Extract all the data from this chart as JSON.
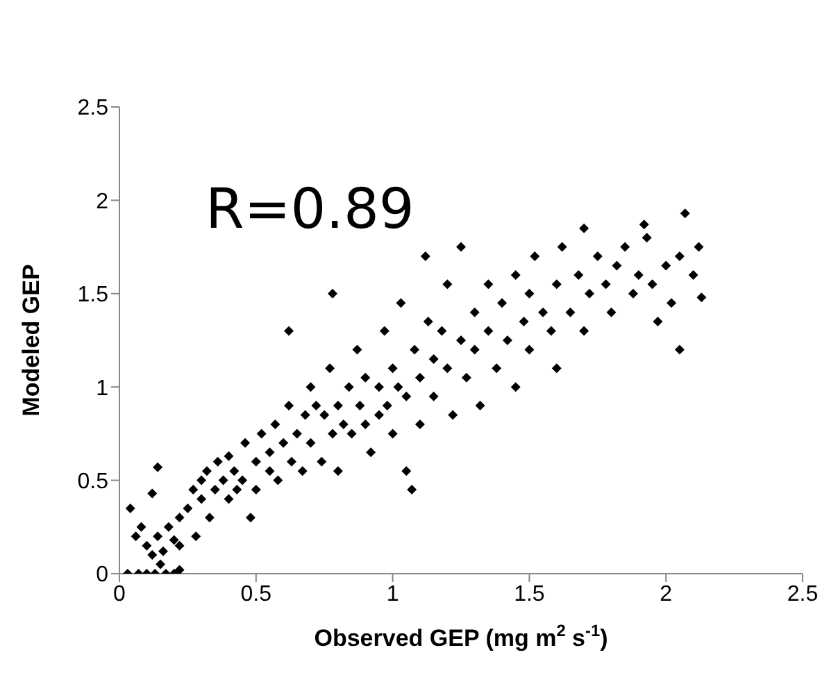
{
  "chart_data": {
    "type": "scatter",
    "xlabel": "Observed GEP (mg m$^{2}$ s$^{-1}$)",
    "ylabel": "Modeled GEP",
    "annotations": [
      "R=0.89"
    ],
    "marker": "diamond",
    "xlim": [
      0,
      2.5
    ],
    "xticks": [
      0,
      0.5,
      1,
      1.5,
      2,
      2.5
    ],
    "ylim": [
      0,
      2.5
    ],
    "yticks": [
      0,
      0.5,
      1,
      1.5,
      2,
      2.5
    ],
    "series": [
      {
        "color": "#000000",
        "x": [
          0.03,
          0.07,
          0.1,
          0.13,
          0.17,
          0.2,
          0.22,
          0.04,
          0.06,
          0.08,
          0.1,
          0.12,
          0.14,
          0.15,
          0.16,
          0.18,
          0.2,
          0.22,
          0.12,
          0.14,
          0.22,
          0.25,
          0.27,
          0.28,
          0.3,
          0.3,
          0.32,
          0.33,
          0.35,
          0.36,
          0.38,
          0.4,
          0.4,
          0.42,
          0.43,
          0.45,
          0.46,
          0.48,
          0.5,
          0.5,
          0.52,
          0.55,
          0.55,
          0.57,
          0.58,
          0.6,
          0.62,
          0.63,
          0.65,
          0.67,
          0.68,
          0.7,
          0.7,
          0.72,
          0.74,
          0.75,
          0.77,
          0.78,
          0.8,
          0.8,
          0.82,
          0.84,
          0.85,
          0.87,
          0.88,
          0.9,
          0.9,
          0.92,
          0.95,
          0.95,
          0.97,
          0.98,
          1.0,
          1.0,
          1.02,
          1.03,
          1.05,
          1.05,
          1.07,
          1.08,
          1.1,
          1.1,
          1.12,
          1.13,
          1.15,
          1.15,
          1.18,
          1.2,
          1.2,
          1.22,
          1.25,
          1.25,
          1.27,
          1.3,
          1.3,
          1.32,
          1.35,
          1.35,
          1.38,
          1.4,
          1.42,
          1.45,
          1.45,
          1.48,
          1.5,
          1.5,
          1.52,
          1.55,
          1.58,
          1.6,
          1.6,
          1.62,
          1.65,
          1.68,
          1.7,
          1.72,
          1.75,
          1.78,
          1.8,
          1.82,
          1.85,
          1.88,
          1.9,
          1.93,
          1.95,
          1.97,
          2.0,
          2.02,
          2.05,
          2.05,
          2.07,
          2.1,
          2.12,
          2.13,
          1.7,
          1.92,
          0.62,
          0.78
        ],
        "values": [
          0,
          0,
          0,
          0,
          0,
          0,
          0.02,
          0.35,
          0.2,
          0.25,
          0.15,
          0.1,
          0.2,
          0.05,
          0.12,
          0.25,
          0.18,
          0.15,
          0.43,
          0.57,
          0.3,
          0.35,
          0.45,
          0.2,
          0.5,
          0.4,
          0.55,
          0.3,
          0.45,
          0.6,
          0.5,
          0.4,
          0.63,
          0.55,
          0.45,
          0.5,
          0.7,
          0.3,
          0.6,
          0.45,
          0.75,
          0.55,
          0.65,
          0.8,
          0.5,
          0.7,
          0.9,
          0.6,
          0.75,
          0.55,
          0.85,
          0.7,
          1.0,
          0.9,
          0.6,
          0.85,
          1.1,
          0.75,
          0.9,
          0.55,
          0.8,
          1.0,
          0.75,
          1.2,
          0.9,
          0.8,
          1.05,
          0.65,
          1.0,
          0.85,
          1.3,
          0.9,
          1.1,
          0.75,
          1.0,
          1.45,
          0.95,
          0.55,
          0.45,
          1.2,
          1.05,
          0.8,
          1.7,
          1.35,
          1.15,
          0.95,
          1.3,
          1.1,
          1.55,
          0.85,
          1.25,
          1.75,
          1.05,
          1.4,
          1.2,
          0.9,
          1.3,
          1.55,
          1.1,
          1.45,
          1.25,
          1.6,
          1.0,
          1.35,
          1.5,
          1.2,
          1.7,
          1.4,
          1.3,
          1.55,
          1.1,
          1.75,
          1.4,
          1.6,
          1.3,
          1.5,
          1.7,
          1.55,
          1.4,
          1.65,
          1.75,
          1.5,
          1.6,
          1.8,
          1.55,
          1.35,
          1.65,
          1.45,
          1.2,
          1.7,
          1.93,
          1.6,
          1.75,
          1.48,
          1.85,
          1.87,
          1.3,
          1.5
        ]
      }
    ]
  }
}
